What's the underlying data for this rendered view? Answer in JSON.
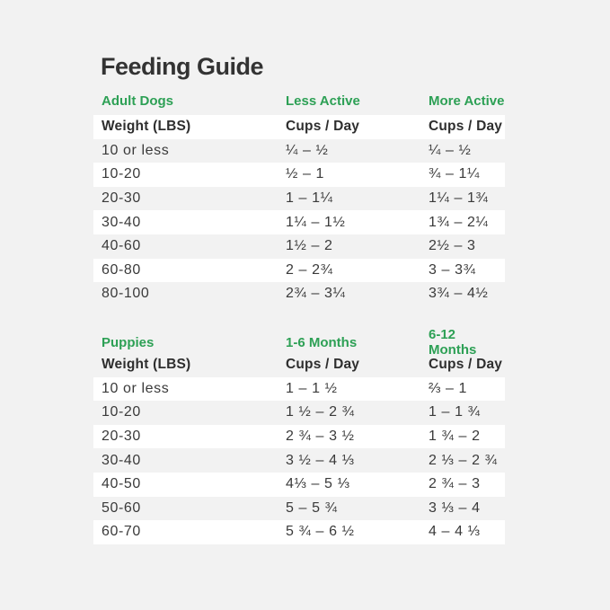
{
  "page": {
    "title": "Feeding Guide",
    "colors": {
      "background": "#f2f2f2",
      "accent_green": "#2da055",
      "text": "#333333",
      "row_highlight": "#ffffff"
    }
  },
  "sections": [
    {
      "id": "adult-dogs",
      "columns": {
        "col1": "Adult Dogs",
        "col2": "Less Active",
        "col3": "More Active"
      },
      "subheader": {
        "weight": "Weight (LBS)",
        "col2": "Cups / Day",
        "col3": "Cups / Day"
      },
      "rows": [
        {
          "weight": "10 or less",
          "col2": "¼ – ½",
          "col3": "¼ – ½"
        },
        {
          "weight": "10-20",
          "col2": "½ – 1",
          "col3": "¾ – 1¼"
        },
        {
          "weight": "20-30",
          "col2": "1 – 1¼",
          "col3": "1¼ – 1¾"
        },
        {
          "weight": "30-40",
          "col2": "1¼ – 1½",
          "col3": "1¾ – 2¼"
        },
        {
          "weight": "40-60",
          "col2": "1½ – 2",
          "col3": "2½ – 3"
        },
        {
          "weight": "60-80",
          "col2": "2 – 2¾",
          "col3": "3 – 3¾"
        },
        {
          "weight": "80-100",
          "col2": "2¾ – 3¼",
          "col3": "3¾ – 4½"
        }
      ]
    },
    {
      "id": "puppies",
      "columns": {
        "col1": "Puppies",
        "col2": "1-6 Months",
        "col3": "6-12 Months"
      },
      "subheader": {
        "weight": "Weight (LBS)",
        "col2": "Cups / Day",
        "col3": "Cups / Day"
      },
      "rows": [
        {
          "weight": "10 or less",
          "col2": "1 – 1 ½",
          "col3": "⅔ – 1"
        },
        {
          "weight": "10-20",
          "col2": "1 ½ – 2 ¾",
          "col3": "1 – 1 ¾"
        },
        {
          "weight": "20-30",
          "col2": "2 ¾ – 3 ½",
          "col3": "1 ¾ – 2"
        },
        {
          "weight": "30-40",
          "col2": "3 ½ – 4 ⅓",
          "col3": "2 ⅓ – 2 ¾"
        },
        {
          "weight": "40-50",
          "col2": "4⅓ – 5 ⅓",
          "col3": "2 ¾ – 3"
        },
        {
          "weight": "50-60",
          "col2": "5 – 5 ¾",
          "col3": "3 ⅓ – 4"
        },
        {
          "weight": "60-70",
          "col2": "5 ¾ – 6 ½",
          "col3": "4 – 4 ⅓"
        }
      ]
    }
  ]
}
